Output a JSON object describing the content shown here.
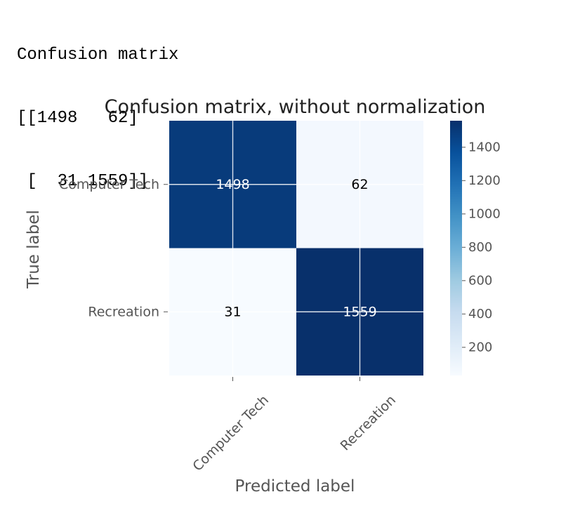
{
  "console": {
    "lines": [
      "Confusion matrix",
      "[[1498   62]",
      " [  31 1559]]"
    ]
  },
  "chart_data": {
    "type": "heatmap",
    "title": "Confusion matrix, without normalization",
    "xlabel": "Predicted label",
    "ylabel": "True label",
    "x_categories": [
      "Computer Tech",
      "Recreation"
    ],
    "y_categories": [
      "Computer Tech",
      "Recreation"
    ],
    "values": [
      [
        1498,
        62
      ],
      [
        31,
        1559
      ]
    ],
    "colormap": "Blues",
    "vmin": 31,
    "vmax": 1559,
    "colorbar_ticks": [
      200,
      400,
      600,
      800,
      1000,
      1200,
      1400
    ],
    "grid": true,
    "colors": {
      "cmap_low": "#f7fbff",
      "cmap_mid": "#6baed6",
      "cmap_high": "#08306b",
      "text_light": "#ffffff",
      "text_dark": "#000000",
      "grid": "#ffffff",
      "tick_text": "#555555"
    }
  }
}
